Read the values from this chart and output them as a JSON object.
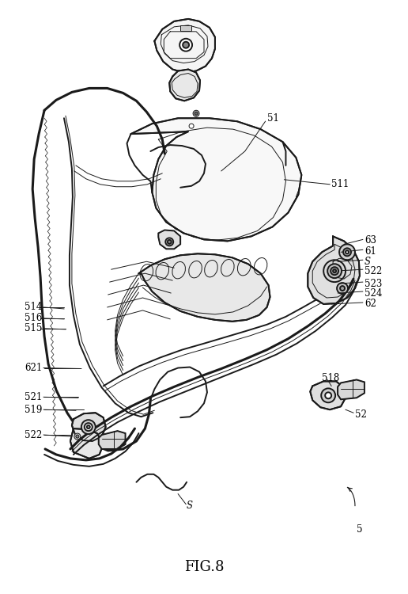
{
  "title": "FIG.8",
  "bg_color": "#ffffff",
  "line_color": "#1a1a1a",
  "figsize": [
    5.16,
    7.5
  ],
  "dpi": 100,
  "lw_main": 1.4,
  "lw_thin": 0.7,
  "lw_thick": 2.2,
  "label_fontsize": 8.5,
  "title_fontsize": 13
}
